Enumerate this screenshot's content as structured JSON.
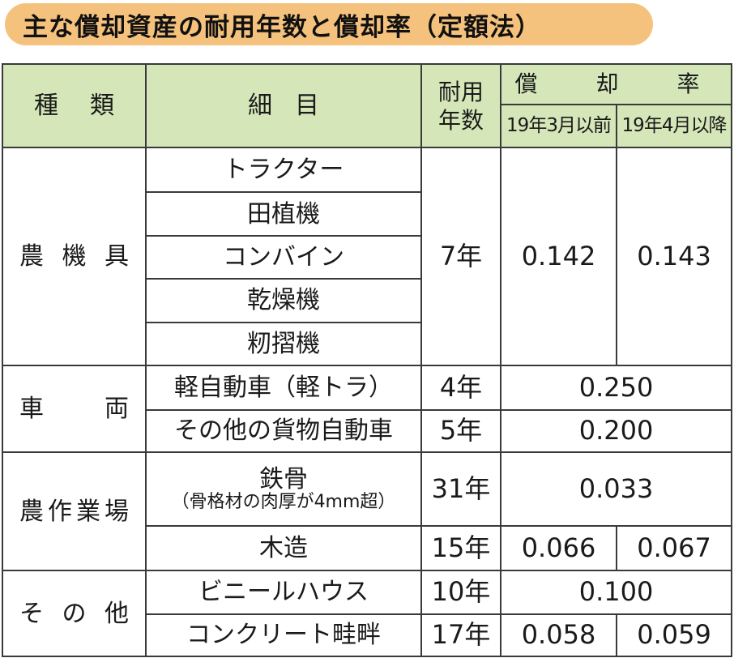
{
  "title": "主な償却資産の耐用年数と償却率（定額法）",
  "header": {
    "type": [
      "種",
      "類"
    ],
    "detail": [
      "細",
      "目"
    ],
    "useful_life": [
      "耐用",
      "年数"
    ],
    "rate": "償　却　率",
    "rate_before": "19年3月以前",
    "rate_after": "19年4月以降"
  },
  "groups": [
    {
      "category": [
        "農",
        "機",
        "具"
      ],
      "items": [
        "トラクター",
        "田植機",
        "コンバイン",
        "乾燥機",
        "籾摺機"
      ],
      "years": "7年",
      "rate_before": "0.142",
      "rate_after": "0.143"
    },
    {
      "category": [
        "車",
        "両"
      ],
      "rows": [
        {
          "detail": "軽自動車（軽トラ）",
          "years": "4年",
          "rate": "0.250"
        },
        {
          "detail": "その他の貨物自動車",
          "years": "5年",
          "rate": "0.200"
        }
      ]
    },
    {
      "category": [
        "農",
        "作",
        "業",
        "場"
      ],
      "rows": [
        {
          "detail": "鉄骨",
          "detail_sub": "（骨格材の肉厚が4mm超）",
          "years": "31年",
          "rate": "0.033"
        },
        {
          "detail": "木造",
          "years": "15年",
          "rate_before": "0.066",
          "rate_after": "0.067"
        }
      ]
    },
    {
      "category": [
        "そ",
        "の",
        "他"
      ],
      "rows": [
        {
          "detail": "ビニールハウス",
          "years": "10年",
          "rate": "0.100"
        },
        {
          "detail": "コンクリート畦畔",
          "years": "17年",
          "rate_before": "0.058",
          "rate_after": "0.059"
        }
      ]
    }
  ]
}
